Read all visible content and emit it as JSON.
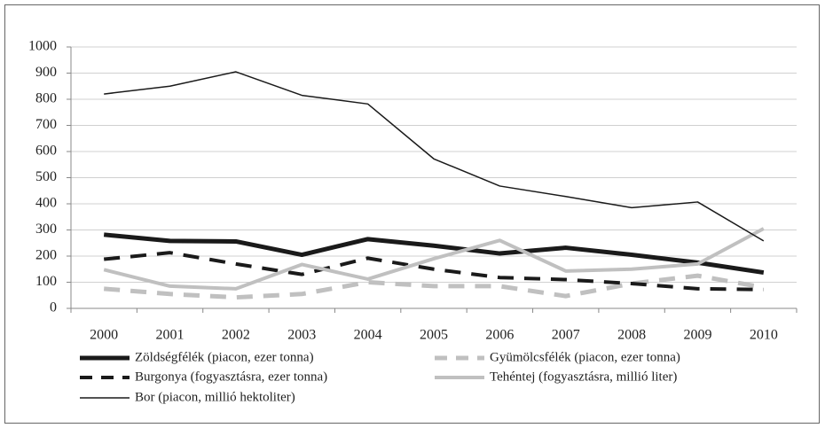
{
  "chart_data": {
    "type": "line",
    "categories": [
      "2000",
      "2001",
      "2002",
      "2003",
      "2004",
      "2005",
      "2006",
      "2007",
      "2008",
      "2009",
      "2010"
    ],
    "ylim": [
      0,
      1000
    ],
    "yticks": [
      0,
      100,
      200,
      300,
      400,
      500,
      600,
      700,
      800,
      900,
      1000
    ],
    "grid": true,
    "series": [
      {
        "name": "Zöldségfélék (piacon, ezer tonna)",
        "color": "#1a1a1a",
        "dash": false,
        "width": 5,
        "values": [
          282,
          258,
          256,
          205,
          265,
          240,
          210,
          232,
          205,
          175,
          137
        ]
      },
      {
        "name": "Gyümölcsfélék (piacon, ezer tonna)",
        "color": "#c0c0c0",
        "dash": true,
        "width": 5,
        "values": [
          75,
          55,
          42,
          55,
          100,
          85,
          85,
          47,
          95,
          125,
          80
        ]
      },
      {
        "name": "Burgonya (fogyasztásra, ezer tonna)",
        "color": "#1a1a1a",
        "dash": true,
        "width": 4,
        "values": [
          188,
          213,
          170,
          130,
          192,
          150,
          118,
          110,
          95,
          75,
          72
        ]
      },
      {
        "name": "Tehéntej (fogyasztásra, millió liter)",
        "color": "#c0c0c0",
        "dash": false,
        "width": 4,
        "values": [
          148,
          85,
          75,
          168,
          112,
          190,
          260,
          143,
          150,
          170,
          305
        ]
      },
      {
        "name": "Bor (piacon, millió hektoliter)",
        "color": "#1a1a1a",
        "dash": false,
        "width": 1.5,
        "values": [
          820,
          850,
          905,
          815,
          782,
          572,
          468,
          428,
          385,
          407,
          258
        ]
      }
    ]
  }
}
